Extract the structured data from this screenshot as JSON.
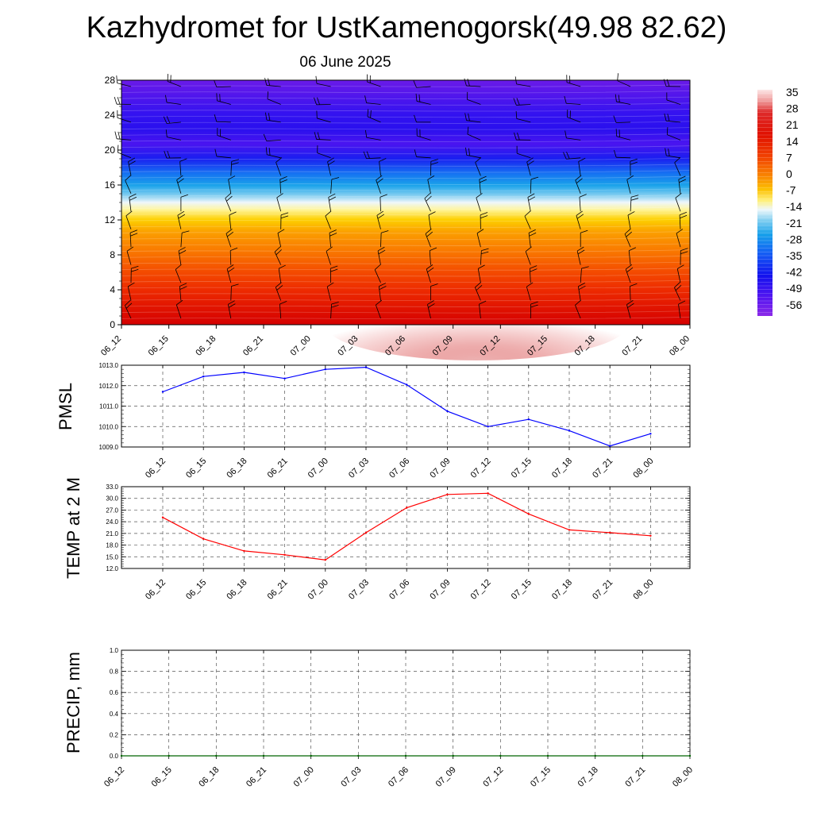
{
  "title": "Kazhydromet for UstKamenogorsk(49.98 82.62)",
  "subtitle": "06 June 2025",
  "colors": {
    "pmsl_line": "#0000ff",
    "temp_line": "#ff0000",
    "precip_line": "#006400",
    "grid": "#555555",
    "colormap": [
      "#fde7e7",
      "#f4a2a2",
      "#de2a2a",
      "#d40000",
      "#e82000",
      "#f23c00",
      "#f76c00",
      "#fb9a00",
      "#fdc000",
      "#fff066",
      "#fffff0",
      "#d7ecf8",
      "#6dc6ef",
      "#10a0e8",
      "#1060f4",
      "#1111ee",
      "#2f14f2",
      "#5a16f2",
      "#7a1ce8",
      "#8a28e8"
    ]
  },
  "chart_data": [
    {
      "type": "heatmap",
      "title": "",
      "xlabel": "",
      "ylabel": "",
      "x_tick_labels": [
        "06_12",
        "06_15",
        "06_18",
        "06_21",
        "07_00",
        "07_03",
        "07_06",
        "07_09",
        "07_12",
        "07_15",
        "07_18",
        "07_21",
        "08_00"
      ],
      "y_tick_labels": [
        "0",
        "4",
        "8",
        "12",
        "16",
        "20",
        "24",
        "28"
      ],
      "ylim": [
        0,
        28
      ],
      "colorbar_labels": [
        "35",
        "28",
        "21",
        "14",
        "7",
        "0",
        "-7",
        "-14",
        "-21",
        "-28",
        "-35",
        "-42",
        "-49",
        "-56"
      ],
      "overlay": "wind barbs",
      "z_summary": [
        {
          "y": 0,
          "value": 28
        },
        {
          "y": 6,
          "value": 21
        },
        {
          "y": 10,
          "value": 7
        },
        {
          "y": 13,
          "value": -7
        },
        {
          "y": 15,
          "value": -28
        },
        {
          "y": 18,
          "value": -49
        },
        {
          "y": 22,
          "value": -56
        },
        {
          "y": 28,
          "value": -49
        }
      ]
    },
    {
      "type": "line",
      "ylabel": "PMSL",
      "ylim": [
        1009.0,
        1013.0
      ],
      "y_tick_labels": [
        "1013.0",
        "1012.0",
        "1011.0",
        "1010.0",
        "1009.0"
      ],
      "categories": [
        "06_12",
        "06_15",
        "06_18",
        "06_21",
        "07_00",
        "07_03",
        "07_06",
        "07_09",
        "07_12",
        "07_15",
        "07_18",
        "07_21",
        "08_00"
      ],
      "values": [
        1011.7,
        1012.45,
        1012.65,
        1012.35,
        1012.8,
        1012.9,
        1012.05,
        1010.75,
        1010.0,
        1010.35,
        1009.8,
        1009.05,
        1009.65
      ],
      "grid": true
    },
    {
      "type": "line",
      "ylabel": "TEMP at 2 M",
      "ylim": [
        12.0,
        33.0
      ],
      "y_tick_labels": [
        "33.0",
        "30.0",
        "27.0",
        "24.0",
        "21.0",
        "18.0",
        "15.0",
        "12.0"
      ],
      "categories": [
        "06_12",
        "06_15",
        "06_18",
        "06_21",
        "07_00",
        "07_03",
        "07_06",
        "07_09",
        "07_12",
        "07_15",
        "07_18",
        "07_21",
        "08_00"
      ],
      "values": [
        25.1,
        19.6,
        16.5,
        15.5,
        14.2,
        21.2,
        27.6,
        31.0,
        31.3,
        26.0,
        21.9,
        21.2,
        20.4
      ],
      "grid": true
    },
    {
      "type": "line",
      "ylabel": "PRECIP, mm",
      "ylim": [
        0.0,
        1.0
      ],
      "y_tick_labels": [
        "1.0",
        "0.8",
        "0.6",
        "0.4",
        "0.2",
        "0.0"
      ],
      "categories": [
        "06_12",
        "06_15",
        "06_18",
        "06_21",
        "07_00",
        "07_03",
        "07_06",
        "07_09",
        "07_12",
        "07_15",
        "07_18",
        "07_21",
        "08_00"
      ],
      "values": [
        0,
        0,
        0,
        0,
        0,
        0,
        0,
        0,
        0,
        0,
        0,
        0,
        0
      ],
      "grid": true
    }
  ]
}
